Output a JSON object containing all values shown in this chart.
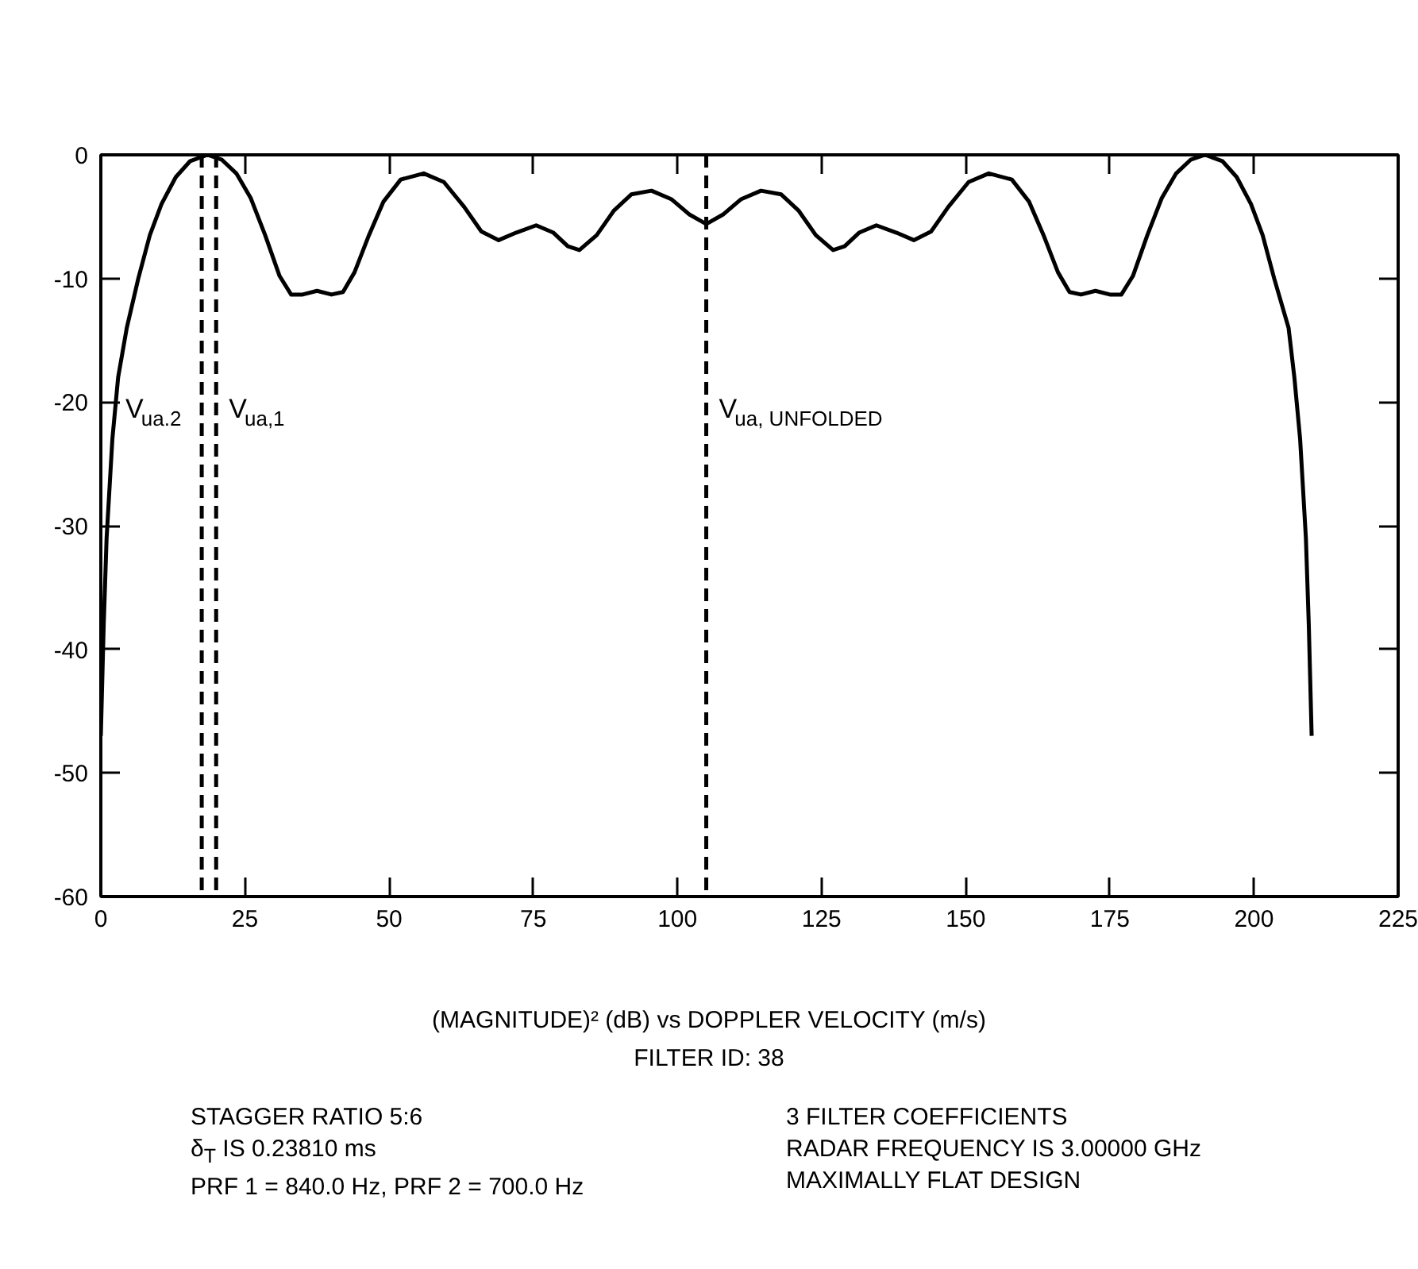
{
  "chart_data": {
    "type": "line",
    "subtitle": "FILTER ID: 38",
    "xlabel": "(MAGNITUDE)² (dB) vs DOPPLER VELOCITY (m/s)",
    "x": [
      0,
      0.5,
      1,
      2,
      3,
      4.5,
      6.5,
      8.5,
      10.5,
      13,
      15.5,
      18.5,
      21,
      23.5,
      26,
      28.5,
      31,
      33,
      35,
      37.5,
      40,
      42,
      44,
      46.5,
      49,
      52,
      56,
      59.5,
      63,
      66,
      69,
      72,
      75.5,
      78.5,
      81,
      83,
      86,
      89,
      92,
      95.5,
      99,
      102,
      105,
      108,
      111,
      114.5,
      118,
      121,
      124,
      127,
      129,
      131.5,
      134.5,
      138,
      141,
      144,
      147,
      150.5,
      154,
      158,
      161,
      163.5,
      166,
      168,
      170,
      172.5,
      175,
      177,
      179,
      181.5,
      184,
      186.5,
      189,
      191.5,
      194.5,
      197,
      199.5,
      201.5,
      203.5,
      206,
      207,
      208,
      209,
      209.5,
      210
    ],
    "series": [
      {
        "color": "#000000",
        "values": [
          -47,
          -38,
          -31,
          -23,
          -18,
          -14,
          -10,
          -6.5,
          -4,
          -1.8,
          -0.5,
          0,
          -0.4,
          -1.5,
          -3.5,
          -6.5,
          -9.8,
          -11.3,
          -11.3,
          -11,
          -11.3,
          -11.1,
          -9.5,
          -6.5,
          -3.8,
          -2,
          -1.5,
          -2.2,
          -4.2,
          -6.2,
          -6.9,
          -6.3,
          -5.7,
          -6.3,
          -7.4,
          -7.7,
          -6.5,
          -4.5,
          -3.2,
          -2.9,
          -3.6,
          -4.8,
          -5.6,
          -4.8,
          -3.6,
          -2.9,
          -3.2,
          -4.5,
          -6.5,
          -7.7,
          -7.4,
          -6.3,
          -5.7,
          -6.3,
          -6.9,
          -6.2,
          -4.2,
          -2.2,
          -1.5,
          -2,
          -3.8,
          -6.5,
          -9.5,
          -11.1,
          -11.3,
          -11,
          -11.3,
          -11.3,
          -9.8,
          -6.5,
          -3.5,
          -1.5,
          -0.4,
          0,
          -0.5,
          -1.8,
          -4,
          -6.5,
          -10,
          -14,
          -18,
          -23,
          -31,
          -38,
          -47
        ]
      }
    ],
    "xlim": [
      0,
      225
    ],
    "xticks": [
      0,
      25,
      50,
      75,
      100,
      125,
      150,
      175,
      200,
      225
    ],
    "ylim": [
      -60,
      0
    ],
    "yticks": [
      0,
      -10,
      -20,
      -30,
      -40,
      -50,
      -60
    ],
    "grid": false,
    "marker": "none",
    "line_style": "solid",
    "ref_lines": [
      {
        "axis": "x",
        "value": 17.5,
        "label": "V$_{ua.2}$",
        "line_style": "dashed",
        "color": "#000000"
      },
      {
        "axis": "x",
        "value": 20,
        "label": "V$_{ua,1}$",
        "line_style": "dashed",
        "color": "#000000"
      },
      {
        "axis": "x",
        "value": 105,
        "label": "V$_{ua, UNFOLDED}$",
        "line_style": "dashed",
        "color": "#000000"
      }
    ],
    "annotations": [
      "STAGGER RATIO 5:6",
      "δ$_{T}$ IS 0.23810 ms",
      "PRF 1 = 840.0 Hz, PRF 2 = 700.0 Hz",
      "3 FILTER COEFFICIENTS",
      "RADAR FREQUENCY IS 3.00000 GHz",
      "MAXIMALLY FLAT DESIGN"
    ]
  }
}
